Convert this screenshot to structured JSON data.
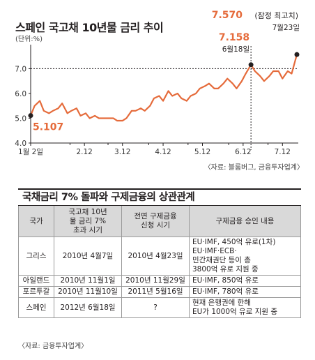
{
  "chart_data": {
    "type": "line",
    "title": "스페인 국고채 10년물 금리 추이",
    "unit_label": "(단위:%)",
    "x_tick_labels": [
      "1월 2일",
      "2.12",
      "3.12",
      "4.12",
      "5.12",
      "6.12",
      "7.12"
    ],
    "y_tick_labels": [
      "7.0",
      "6.0",
      "5.0",
      "4.0"
    ],
    "ylim": [
      4.0,
      7.8
    ],
    "reference_line": 7.0,
    "series": [
      {
        "x": [
          "1/2",
          "1/5",
          "1/9",
          "1/12",
          "1/16",
          "1/19",
          "1/23",
          "1/26",
          "1/30",
          "2/2",
          "2/6",
          "2/9",
          "2/13",
          "2/16",
          "2/20",
          "2/23",
          "2/27",
          "3/1",
          "3/5",
          "3/8",
          "3/12",
          "3/15",
          "3/19",
          "3/22",
          "3/26",
          "3/29",
          "4/2",
          "4/5",
          "4/9",
          "4/12",
          "4/16",
          "4/19",
          "4/23",
          "4/26",
          "4/30",
          "5/3",
          "5/7",
          "5/10",
          "5/14",
          "5/17",
          "5/21",
          "5/24",
          "5/28",
          "5/31",
          "6/4",
          "6/7",
          "6/11",
          "6/14",
          "6/18",
          "6/21",
          "6/25",
          "6/28",
          "7/2",
          "7/5",
          "7/9",
          "7/12",
          "7/16",
          "7/19",
          "7/23"
        ],
        "values": [
          5.107,
          5.5,
          5.7,
          5.3,
          5.2,
          5.3,
          5.4,
          5.6,
          5.2,
          5.3,
          5.4,
          5.1,
          5.2,
          5.0,
          5.1,
          5.0,
          5.0,
          5.0,
          5.0,
          4.9,
          4.9,
          5.0,
          5.3,
          5.3,
          5.4,
          5.3,
          5.5,
          5.8,
          5.9,
          5.7,
          6.1,
          5.9,
          6.0,
          5.8,
          5.7,
          5.9,
          6.0,
          6.2,
          6.3,
          6.4,
          6.2,
          6.2,
          6.4,
          6.6,
          6.4,
          6.2,
          6.5,
          6.8,
          7.158,
          6.9,
          6.7,
          6.5,
          6.7,
          6.9,
          6.9,
          6.6,
          6.9,
          6.8,
          7.57
        ],
        "color": "#e56b3b"
      }
    ],
    "annotations": {
      "start_value": "5.107",
      "peak_value": "7.158",
      "peak_date": "6월18일",
      "record_value": "7.570",
      "record_note": "(잠정 최고치)",
      "record_date": "7월23일"
    },
    "source": "〈자료: 블룸버그, 금융투자업계〉"
  },
  "table": {
    "title": "국채금리 7% 돌파와 구제금융의 상관관계",
    "headers": [
      "국가",
      "국고채 10년\n물 금리 7%\n초과 시기",
      "전면 구제금융\n신청 시기",
      "구제금융 승인 내용"
    ],
    "rows": [
      [
        "그리스",
        "2010년 4월7일",
        "2010년 4월23일",
        "EU·IMF, 450억 유로(1차)\nEU·IMF·ECB·\n민간채권단 등이 총\n3800억 유로 지원 중"
      ],
      [
        "아일랜드",
        "2010년 11월1일",
        "2010년 11월29일",
        "EU·IMF, 850억 유로"
      ],
      [
        "포르투갈",
        "2010년 11월10일",
        "2011년 5월16일",
        "EU·IMF, 780억 유로"
      ],
      [
        "스페인",
        "2012년 6월18일",
        "?",
        "현재 은행권에 한해\nEU가 1000억 유로 지원 중"
      ]
    ],
    "source": "〈자료: 금융투자업계〉"
  },
  "colors": {
    "line": "#e56b3b",
    "header_bg": "#d9d9d9"
  }
}
